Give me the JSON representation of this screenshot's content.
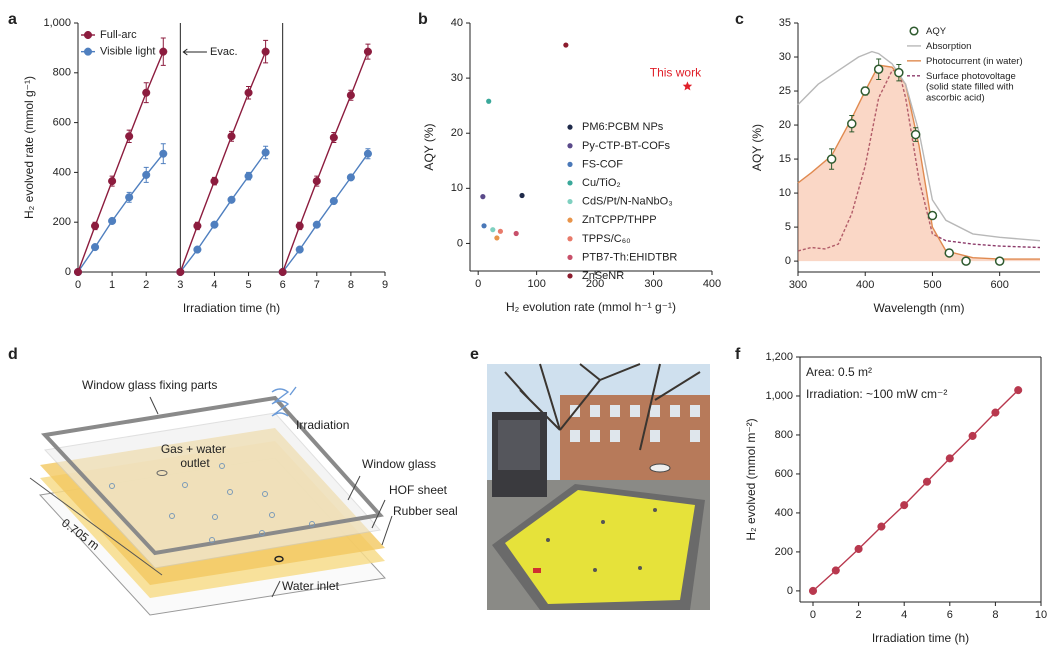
{
  "chart_data": [
    {
      "panel": "a",
      "type": "line",
      "xlabel": "Irradiation time (h)",
      "ylabel": "H₂ evolved rate (mmol g⁻¹)",
      "xlim": [
        0,
        9
      ],
      "ylim": [
        0,
        1000
      ],
      "xticks": [
        0,
        1,
        2,
        3,
        4,
        5,
        6,
        7,
        8,
        9
      ],
      "yticks": [
        0,
        200,
        400,
        600,
        800,
        {
          "value": 1000,
          "label": "1,000"
        }
      ],
      "legend": "upper left",
      "frame": "left-bottom",
      "annotation": "Evac.",
      "series": [
        {
          "name": "Full-arc",
          "color": "#8c1c3e",
          "runs": [
            {
              "x": [
                0,
                0.5,
                1,
                1.5,
                2,
                2.5
              ],
              "values": [
                0,
                185,
                365,
                545,
                720,
                885
              ],
              "errors": [
                0,
                15,
                20,
                25,
                40,
                55
              ]
            },
            {
              "x": [
                3,
                3.5,
                4,
                4.5,
                5,
                5.5
              ],
              "values": [
                0,
                185,
                365,
                545,
                720,
                885
              ],
              "errors": [
                0,
                15,
                15,
                20,
                25,
                45
              ]
            },
            {
              "x": [
                6,
                6.5,
                7,
                7.5,
                8,
                8.5
              ],
              "values": [
                0,
                185,
                365,
                540,
                710,
                885
              ],
              "errors": [
                0,
                15,
                20,
                20,
                20,
                30
              ]
            }
          ]
        },
        {
          "name": "Visible light",
          "color": "#4f7fbf",
          "runs": [
            {
              "x": [
                0,
                0.5,
                1,
                1.5,
                2,
                2.5
              ],
              "values": [
                0,
                100,
                205,
                300,
                390,
                475
              ],
              "errors": [
                0,
                8,
                10,
                20,
                30,
                40
              ]
            },
            {
              "x": [
                3,
                3.5,
                4,
                4.5,
                5,
                5.5
              ],
              "values": [
                0,
                90,
                190,
                290,
                385,
                480
              ],
              "errors": [
                0,
                8,
                10,
                10,
                15,
                25
              ]
            },
            {
              "x": [
                6,
                6.5,
                7,
                7.5,
                8,
                8.5
              ],
              "values": [
                0,
                90,
                190,
                285,
                380,
                475
              ],
              "errors": [
                0,
                8,
                10,
                10,
                10,
                20
              ]
            }
          ]
        }
      ]
    },
    {
      "panel": "b",
      "type": "scatter",
      "xlabel": "H₂ evolution rate (mmol h⁻¹ g⁻¹)",
      "ylabel": "AQY (%)",
      "xlim": [
        -14,
        400
      ],
      "ylim": [
        -5,
        40
      ],
      "xticks": [
        0,
        100,
        200,
        300,
        400
      ],
      "yticks": [
        0,
        10,
        20,
        30,
        40
      ],
      "legend": "center right",
      "frame": "left-bottom",
      "series": [
        {
          "name": "PM6:PCBM NPs",
          "color": "#1f2a4a",
          "x": [
            75
          ],
          "values": [
            8.7
          ]
        },
        {
          "name": "Py-CTP-BT-COFs",
          "color": "#5a4a8a",
          "x": [
            8
          ],
          "values": [
            8.5
          ]
        },
        {
          "name": "FS-COF",
          "color": "#4a78b8",
          "x": [
            10
          ],
          "values": [
            3.2
          ]
        },
        {
          "name": "Cu/TiO₂",
          "color": "#3aa89a",
          "x": [
            18
          ],
          "values": [
            25.8
          ]
        },
        {
          "name": "CdS/Pt/N-NaNbO₃",
          "color": "#7fd0c0",
          "x": [
            25
          ],
          "values": [
            2.5
          ]
        },
        {
          "name": "ZnTCPP/THPP",
          "color": "#e8944a",
          "x": [
            32
          ],
          "values": [
            1.0
          ]
        },
        {
          "name": "TPPS/C₆₀",
          "color": "#e87a6a",
          "x": [
            38
          ],
          "values": [
            2.2
          ]
        },
        {
          "name": "PTB7-Th:EHIDTBR",
          "color": "#c8506a",
          "x": [
            65
          ],
          "values": [
            1.8
          ]
        },
        {
          "name": "ZnSeNR",
          "color": "#8c1c2e",
          "x": [
            150
          ],
          "values": [
            36
          ]
        },
        {
          "name": "This work",
          "color": "#e0202a",
          "marker": "star",
          "legend": false,
          "x": [
            358
          ],
          "values": [
            28.5
          ]
        }
      ]
    },
    {
      "panel": "c",
      "type": "line",
      "xlabel": "Wavelength (nm)",
      "ylabel": "AQY (%)",
      "xlim": [
        300,
        660
      ],
      "ylim": [
        -1.6,
        35
      ],
      "xticks": [
        300,
        400,
        500,
        600
      ],
      "yticks": [
        0,
        5,
        10,
        15,
        20,
        25,
        30,
        35
      ],
      "legend": "upper right",
      "frame": "left-bottom",
      "series": [
        {
          "name": "AQY",
          "color": "#2e5a2e",
          "marker": "open",
          "line": false,
          "x": [
            350,
            380,
            400,
            420,
            450,
            475,
            500,
            525,
            550,
            600
          ],
          "values": [
            15,
            20.2,
            25,
            28.2,
            27.7,
            18.6,
            6.7,
            1.2,
            0,
            0
          ],
          "errors": [
            1.5,
            1.2,
            0.6,
            1.5,
            1.2,
            1,
            0.5,
            0.3,
            0.2,
            0.2
          ]
        },
        {
          "name": "Absorption",
          "color": "#b8b8b8",
          "marker": "none",
          "x": [
            300,
            330,
            360,
            390,
            410,
            420,
            440,
            460,
            480,
            500,
            520,
            560,
            600,
            660
          ],
          "values": [
            23,
            26,
            28,
            30,
            30.8,
            30.5,
            29,
            26,
            19,
            9,
            6,
            4,
            3.5,
            3
          ]
        },
        {
          "name": "Photocurrent (in water)",
          "color": "#e08a50",
          "fill": "rgba(242,150,105,0.38)",
          "marker": "none",
          "x": [
            300,
            320,
            350,
            380,
            400,
            420,
            440,
            460,
            480,
            500,
            520,
            560,
            600,
            660
          ],
          "values": [
            11.5,
            13,
            15.5,
            21,
            25,
            28.8,
            28.5,
            26,
            17,
            5,
            1.5,
            0.5,
            0.3,
            0.3
          ]
        },
        {
          "name": "Surface photovoltage (solid state filled with ascorbic acid)",
          "color": "#8c3a6a",
          "dash": true,
          "marker": "none",
          "x": [
            300,
            320,
            340,
            360,
            380,
            400,
            420,
            440,
            450,
            460,
            480,
            500,
            520,
            560,
            600,
            660
          ],
          "values": [
            1.5,
            2,
            1.8,
            2.5,
            7,
            14,
            24,
            28,
            28,
            24,
            12,
            4,
            3,
            2.5,
            2.2,
            2
          ]
        }
      ]
    },
    {
      "panel": "f",
      "type": "line",
      "xlabel": "Irradiation time (h)",
      "ylabel": "H₂ evolved (mmol m⁻²)",
      "xlim": [
        -0.57,
        10
      ],
      "ylim": [
        -57,
        1200
      ],
      "xticks": [
        0,
        2,
        4,
        6,
        8,
        10
      ],
      "yticks": [
        0,
        200,
        400,
        600,
        800,
        {
          "value": 1000,
          "label": "1,000"
        },
        {
          "value": 1200,
          "label": "1,200"
        }
      ],
      "frame": "box",
      "annotations": [
        "Area: 0.5 m²",
        "Irradiation: ~100 mW cm⁻²"
      ],
      "series": [
        {
          "color": "#b8384e",
          "x": [
            0,
            1,
            2,
            3,
            4,
            5,
            6,
            7,
            8,
            9
          ],
          "values": [
            0,
            105,
            215,
            330,
            440,
            560,
            680,
            795,
            915,
            1030
          ]
        }
      ]
    }
  ],
  "diagram": {
    "panel": "d",
    "labels": [
      "Window glass fixing parts",
      "Irradiation",
      "Gas + water outlet",
      "Window glass",
      "HOF sheet",
      "Rubber seal",
      "0.705 m",
      "Water inlet"
    ]
  },
  "photo": {
    "panel": "e"
  }
}
